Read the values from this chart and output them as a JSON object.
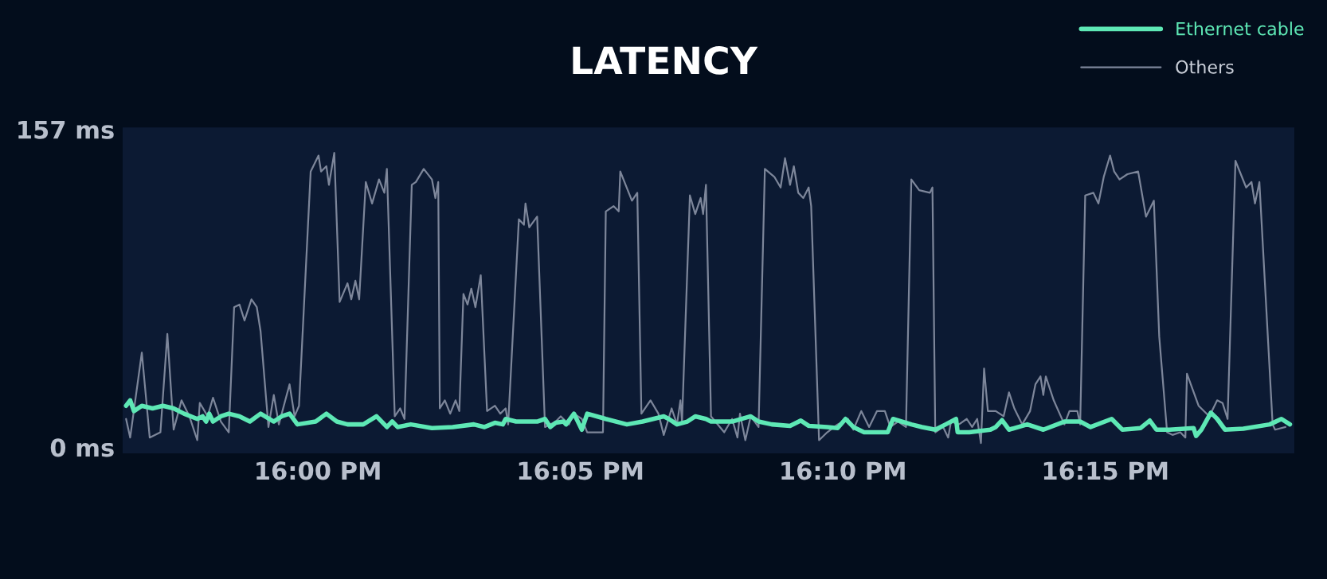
{
  "chart_data": {
    "type": "line",
    "title": "LATENCY",
    "xlim": [
      15.938,
      16.31
    ],
    "ylim": [
      -3,
      158
    ],
    "xticks": [
      {
        "value": 16.0,
        "label": "16:00 PM"
      },
      {
        "value": 16.083333,
        "label": "16:05 PM"
      },
      {
        "value": 16.166667,
        "label": "16:10 PM"
      },
      {
        "value": 16.25,
        "label": "16:15 PM"
      }
    ],
    "yticks": [
      {
        "value": 0,
        "label": "0 ms"
      },
      {
        "value": 157,
        "label": "157 ms"
      }
    ],
    "grid": false,
    "legend": "top right",
    "series": [
      {
        "name": "Ethernet cable",
        "color": "#5ee8b5",
        "x": [
          15.9391,
          15.9404,
          15.9416,
          15.9441,
          15.9475,
          15.9508,
          15.9542,
          15.9575,
          15.9617,
          15.9634,
          15.9645,
          15.9655,
          15.9667,
          15.9692,
          15.9717,
          15.9751,
          15.9784,
          15.9818,
          15.986,
          15.9885,
          15.991,
          15.9935,
          15.9993,
          16.0027,
          16.006,
          16.0094,
          16.0144,
          16.0186,
          16.0219,
          16.0236,
          16.0253,
          16.0295,
          16.0362,
          16.0428,
          16.0495,
          16.0529,
          16.0562,
          16.0587,
          16.0596,
          16.0629,
          16.0696,
          16.0721,
          16.0738,
          16.0755,
          16.078,
          16.0788,
          16.0813,
          16.0838,
          16.0855,
          16.0914,
          16.0981,
          16.1031,
          16.1098,
          16.1114,
          16.114,
          16.1173,
          16.1198,
          16.1232,
          16.1248,
          16.1315,
          16.1374,
          16.1399,
          16.1441,
          16.1499,
          16.1533,
          16.1558,
          16.1617,
          16.165,
          16.1675,
          16.17,
          16.1734,
          16.1809,
          16.1826,
          16.1884,
          16.1918,
          16.196,
          16.1993,
          16.2026,
          16.2031,
          16.2068,
          16.2135,
          16.2152,
          16.2172,
          16.2194,
          16.2252,
          16.2303,
          16.237,
          16.242,
          16.2453,
          16.252,
          16.2554,
          16.2612,
          16.2641,
          16.2662,
          16.2704,
          16.278,
          16.2788,
          16.2805,
          16.2835,
          16.2855,
          16.288,
          16.2938,
          16.3022,
          16.3059,
          16.3086
        ],
        "values": [
          20.5,
          23.2,
          17.9,
          20.5,
          19.2,
          20.5,
          19.2,
          16.6,
          14.0,
          15.3,
          12.7,
          16.6,
          12.7,
          15.3,
          16.6,
          15.3,
          12.7,
          16.6,
          12.7,
          15.3,
          16.6,
          11.3,
          12.7,
          16.6,
          12.7,
          11.3,
          11.3,
          15.3,
          10.0,
          12.7,
          10.0,
          11.3,
          9.5,
          10.0,
          11.3,
          10.0,
          12.1,
          11.3,
          14.0,
          12.7,
          12.7,
          14.0,
          10.0,
          12.1,
          12.7,
          11.3,
          16.6,
          8.7,
          16.6,
          14.0,
          11.3,
          12.7,
          15.3,
          14.0,
          11.3,
          12.7,
          15.3,
          14.0,
          12.7,
          12.7,
          15.3,
          12.7,
          11.3,
          10.6,
          13.2,
          10.6,
          10.0,
          9.5,
          14.0,
          10.0,
          7.4,
          7.4,
          14.0,
          11.3,
          10.0,
          8.7,
          11.3,
          14.0,
          7.4,
          7.4,
          8.7,
          10.0,
          13.4,
          8.7,
          11.3,
          8.7,
          12.7,
          12.7,
          10.0,
          14.0,
          8.7,
          9.5,
          13.2,
          8.7,
          8.7,
          9.5,
          5.6,
          8.7,
          17.1,
          14.0,
          8.7,
          9.2,
          11.3,
          14.0,
          11.3
        ]
      },
      {
        "name": "Others",
        "color": "#7d869a",
        "x": [
          15.9391,
          15.9404,
          15.9441,
          15.9466,
          15.95,
          15.9522,
          15.9542,
          15.9567,
          15.9592,
          15.9617,
          15.9625,
          15.965,
          15.9667,
          15.9692,
          15.9717,
          15.9734,
          15.9751,
          15.9767,
          15.9789,
          15.9806,
          15.9818,
          15.9843,
          15.986,
          15.9876,
          15.991,
          15.9926,
          15.994,
          15.9977,
          16.0002,
          16.001,
          16.0027,
          16.0035,
          16.0052,
          16.0069,
          16.0094,
          16.0106,
          16.0119,
          16.0131,
          16.0152,
          16.0172,
          16.0194,
          16.0211,
          16.0219,
          16.0244,
          16.0261,
          16.0275,
          16.0298,
          16.0311,
          16.0336,
          16.0362,
          16.0373,
          16.0382,
          16.0387,
          16.0403,
          16.042,
          16.0437,
          16.0449,
          16.0462,
          16.0475,
          16.0487,
          16.05,
          16.0517,
          16.0537,
          16.0562,
          16.0579,
          16.0596,
          16.0604,
          16.0638,
          16.0654,
          16.0659,
          16.0671,
          16.0696,
          16.0721,
          16.0755,
          16.0771,
          16.0797,
          16.0813,
          16.0838,
          16.0855,
          16.088,
          16.0905,
          16.0914,
          16.0939,
          16.0955,
          16.096,
          16.0997,
          16.1014,
          16.1027,
          16.1056,
          16.1081,
          16.1098,
          16.1123,
          16.114,
          16.1151,
          16.1156,
          16.1181,
          16.1198,
          16.1215,
          16.1223,
          16.1232,
          16.1248,
          16.129,
          16.1315,
          16.1332,
          16.134,
          16.1357,
          16.1374,
          16.1399,
          16.1419,
          16.1449,
          16.1469,
          16.1483,
          16.1499,
          16.1511,
          16.1525,
          16.1541,
          16.1558,
          16.1566,
          16.1591,
          16.1617,
          16.165,
          16.1683,
          16.17,
          16.1725,
          16.175,
          16.1775,
          16.18,
          16.1817,
          16.1842,
          16.1867,
          16.1884,
          16.1909,
          16.1943,
          16.1951,
          16.196,
          16.1985,
          16.2001,
          16.201,
          16.2035,
          16.206,
          16.2077,
          16.2093,
          16.2105,
          16.2115,
          16.2127,
          16.2152,
          16.2177,
          16.2194,
          16.2211,
          16.2236,
          16.2261,
          16.2278,
          16.2294,
          16.2303,
          16.2311,
          16.2336,
          16.237,
          16.2386,
          16.2411,
          16.242,
          16.2436,
          16.2462,
          16.2478,
          16.2495,
          16.2515,
          16.2528,
          16.2545,
          16.257,
          16.2604,
          16.2629,
          16.2654,
          16.2671,
          16.2696,
          16.2713,
          16.2738,
          16.2754,
          16.2759,
          16.2796,
          16.283,
          16.2855,
          16.2872,
          16.2888,
          16.2913,
          16.293,
          16.2947,
          16.2964,
          16.2975,
          16.2989,
          16.3031,
          16.3039,
          16.3072
        ],
        "values": [
          14.0,
          4.8,
          46.8,
          4.8,
          7.4,
          56.0,
          8.7,
          23.2,
          15.3,
          3.5,
          21.9,
          15.3,
          24.5,
          12.7,
          7.4,
          69.2,
          70.5,
          62.6,
          73.1,
          69.2,
          57.3,
          10.0,
          25.8,
          11.3,
          31.1,
          15.3,
          20.5,
          136.2,
          144.1,
          136.2,
          138.8,
          129.6,
          145.4,
          71.8,
          81.0,
          73.1,
          82.3,
          73.1,
          131.0,
          120.4,
          132.3,
          125.7,
          137.5,
          15.3,
          19.2,
          14.0,
          129.6,
          131.0,
          137.5,
          132.3,
          123.1,
          131.0,
          19.2,
          23.2,
          16.6,
          23.2,
          17.9,
          75.7,
          70.5,
          78.4,
          69.2,
          85.0,
          17.9,
          20.5,
          16.6,
          19.2,
          11.3,
          112.6,
          109.9,
          120.4,
          108.6,
          113.9,
          10.0,
          12.7,
          15.3,
          11.3,
          16.6,
          14.0,
          7.4,
          7.4,
          7.4,
          116.5,
          119.1,
          116.5,
          136.2,
          121.8,
          125.7,
          16.6,
          23.2,
          16.6,
          6.1,
          19.2,
          11.3,
          23.2,
          12.7,
          124.4,
          115.2,
          123.1,
          115.2,
          129.6,
          15.3,
          7.4,
          14.0,
          4.8,
          16.6,
          3.5,
          15.3,
          10.0,
          137.5,
          133.6,
          128.3,
          142.8,
          129.6,
          138.8,
          125.7,
          123.1,
          128.3,
          119.1,
          3.5,
          7.4,
          11.3,
          14.0,
          8.7,
          17.9,
          10.0,
          17.9,
          17.9,
          10.0,
          12.7,
          10.0,
          132.3,
          127.0,
          125.7,
          128.3,
          7.4,
          10.0,
          4.8,
          12.7,
          11.3,
          14.0,
          10.0,
          14.0,
          2.1,
          38.9,
          17.9,
          17.9,
          15.3,
          27.1,
          19.2,
          11.3,
          17.9,
          31.1,
          35.0,
          25.8,
          35.0,
          23.2,
          11.3,
          17.9,
          17.9,
          11.3,
          124.4,
          125.7,
          120.4,
          133.6,
          144.1,
          136.2,
          132.3,
          134.9,
          136.2,
          113.9,
          121.8,
          54.7,
          7.4,
          6.1,
          7.4,
          4.8,
          36.3,
          20.5,
          15.3,
          23.2,
          21.9,
          14.0,
          141.5,
          134.9,
          128.3,
          131.0,
          120.4,
          131.0,
          11.3,
          8.7,
          10.0
        ]
      }
    ]
  }
}
